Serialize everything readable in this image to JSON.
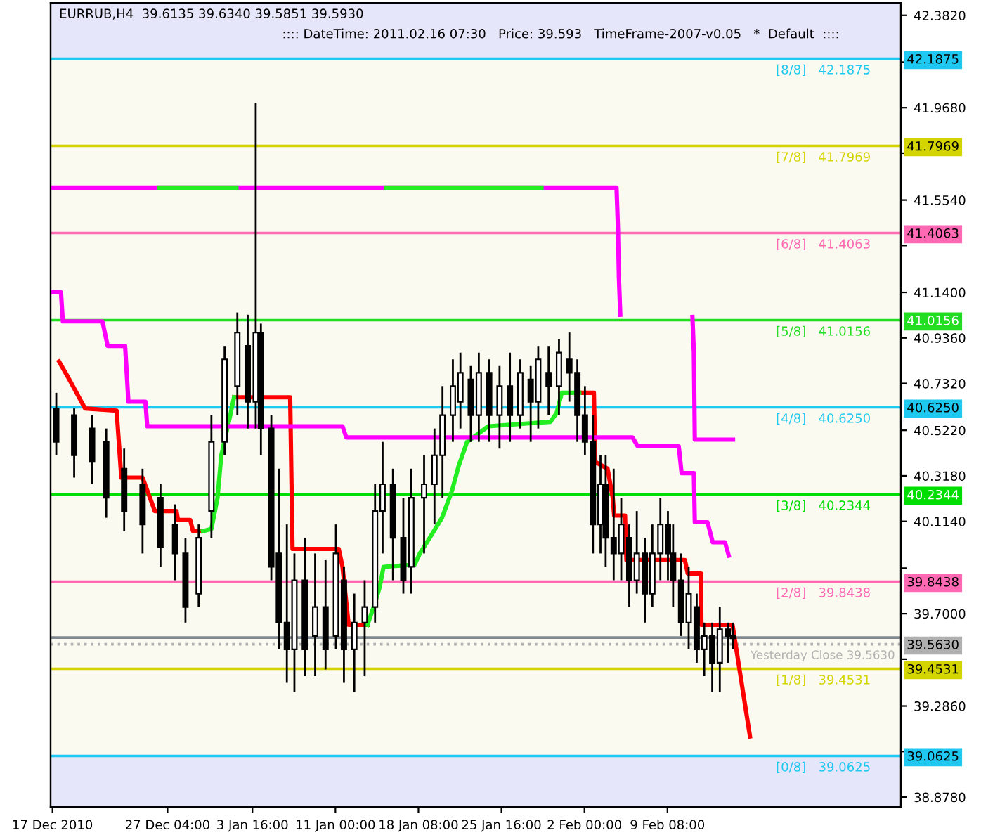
{
  "chart_data": {
    "type": "candlestick",
    "title": "EURRUB,H4  39.6135 39.6340 39.5851 39.5930",
    "subtitle": ":::: DateTime: 2011.02.16 07:30   Price: 39.593   TimeFrame-2007-v0.05   *  Default  ::::",
    "color": "#000000",
    "x": [
      "2010-12-17T08:00",
      "2010-12-18T22:00",
      "2010-12-20T12:00",
      "2010-12-21T18:00",
      "2010-12-23T08:00",
      "2010-12-24T23:00",
      "2010-12-26T13:00",
      "2010-12-27T20:00",
      "2010-12-28T18:00",
      "2010-12-29T22:00",
      "2010-12-31T01:00",
      "2011-01-01T05:00",
      "2011-01-02T08:00",
      "2011-01-03T06:00",
      "2011-01-03T23:00",
      "2011-01-04T10:00",
      "2011-01-05T08:00",
      "2011-01-06T00:00",
      "2011-01-06T17:00",
      "2011-01-07T09:00",
      "2011-01-08T07:00",
      "2011-01-09T05:00",
      "2011-01-10T03:00",
      "2011-01-11T01:00",
      "2011-01-11T18:00",
      "2011-01-12T16:00",
      "2011-01-13T14:00",
      "2011-01-14T12:00",
      "2011-01-15T04:00",
      "2011-01-16T02:00",
      "2011-01-17T00:00",
      "2011-01-17T17:00",
      "2011-01-18T20:00",
      "2011-01-19T18:00",
      "2011-01-20T11:00",
      "2011-01-21T09:00",
      "2011-01-22T01:00",
      "2011-01-22T23:00",
      "2011-01-23T16:00",
      "2011-01-24T14:00",
      "2011-01-25T12:00",
      "2011-01-26T10:00",
      "2011-01-27T08:00",
      "2011-01-28T06:00",
      "2011-01-28T22:00",
      "2011-01-29T20:00",
      "2011-01-30T18:00",
      "2011-01-31T16:00",
      "2011-02-01T09:00",
      "2011-02-02T01:00",
      "2011-02-02T18:00",
      "2011-02-03T10:00",
      "2011-02-03T21:00",
      "2011-02-04T14:00",
      "2011-02-05T06:00",
      "2011-02-05T23:00",
      "2011-02-06T15:00",
      "2011-02-07T08:00",
      "2011-02-08T00:00",
      "2011-02-08T17:00",
      "2011-02-09T09:00",
      "2011-02-09T20:00",
      "2011-02-10T13:00",
      "2011-02-11T05:00",
      "2011-02-11T22:00",
      "2011-02-12T14:00",
      "2011-02-13T07:00",
      "2011-02-13T23:00",
      "2011-02-14T16:00",
      "2011-02-15T03:00"
    ],
    "ohlc": [
      [
        40.62,
        40.69,
        40.41,
        40.47
      ],
      [
        40.59,
        40.62,
        40.31,
        40.41
      ],
      [
        40.53,
        40.59,
        40.28,
        40.38
      ],
      [
        40.47,
        40.53,
        40.13,
        40.22
      ],
      [
        40.35,
        40.44,
        40.07,
        40.16
      ],
      [
        40.28,
        40.35,
        39.97,
        40.1
      ],
      [
        40.22,
        40.28,
        39.91,
        40.0
      ],
      [
        40.1,
        40.19,
        39.85,
        39.97
      ],
      [
        39.97,
        40.04,
        39.66,
        39.73
      ],
      [
        39.79,
        40.1,
        39.73,
        40.04
      ],
      [
        40.16,
        40.59,
        40.04,
        40.47
      ],
      [
        40.47,
        40.9,
        40.41,
        40.84
      ],
      [
        40.72,
        41.05,
        40.59,
        40.96
      ],
      [
        40.9,
        41.04,
        40.53,
        40.65
      ],
      [
        40.65,
        41.99,
        40.53,
        40.96
      ],
      [
        40.96,
        41.0,
        40.41,
        40.53
      ],
      [
        40.53,
        40.59,
        39.85,
        39.91
      ],
      [
        39.97,
        40.35,
        39.54,
        39.66
      ],
      [
        39.66,
        40.1,
        39.39,
        39.54
      ],
      [
        39.54,
        39.97,
        39.35,
        39.85
      ],
      [
        39.85,
        40.04,
        39.42,
        39.54
      ],
      [
        39.6,
        39.97,
        39.42,
        39.73
      ],
      [
        39.73,
        39.94,
        39.45,
        39.54
      ],
      [
        39.6,
        40.1,
        39.54,
        39.97
      ],
      [
        39.85,
        39.91,
        39.39,
        39.54
      ],
      [
        39.54,
        39.79,
        39.35,
        39.66
      ],
      [
        39.66,
        39.85,
        39.42,
        39.73
      ],
      [
        39.73,
        40.28,
        39.66,
        40.16
      ],
      [
        40.16,
        40.47,
        39.97,
        40.28
      ],
      [
        40.28,
        40.35,
        39.85,
        40.04
      ],
      [
        40.04,
        40.22,
        39.79,
        39.85
      ],
      [
        39.91,
        40.35,
        39.79,
        40.22
      ],
      [
        40.22,
        40.41,
        39.97,
        40.28
      ],
      [
        40.28,
        40.53,
        40.1,
        40.41
      ],
      [
        40.41,
        40.72,
        40.22,
        40.59
      ],
      [
        40.59,
        40.84,
        40.47,
        40.72
      ],
      [
        40.65,
        40.87,
        40.53,
        40.78
      ],
      [
        40.75,
        40.81,
        40.47,
        40.59
      ],
      [
        40.59,
        40.87,
        40.47,
        40.78
      ],
      [
        40.78,
        40.84,
        40.47,
        40.59
      ],
      [
        40.59,
        40.81,
        40.44,
        40.72
      ],
      [
        40.72,
        40.87,
        40.47,
        40.59
      ],
      [
        40.59,
        40.84,
        40.53,
        40.78
      ],
      [
        40.75,
        40.81,
        40.47,
        40.65
      ],
      [
        40.65,
        40.9,
        40.53,
        40.84
      ],
      [
        40.78,
        40.9,
        40.59,
        40.72
      ],
      [
        40.72,
        40.93,
        40.59,
        40.87
      ],
      [
        40.84,
        40.96,
        40.65,
        40.78
      ],
      [
        40.78,
        40.84,
        40.47,
        40.59
      ],
      [
        40.59,
        40.72,
        40.41,
        40.47
      ],
      [
        40.47,
        40.59,
        39.97,
        40.1
      ],
      [
        40.1,
        40.41,
        39.97,
        40.28
      ],
      [
        40.28,
        40.41,
        39.91,
        40.04
      ],
      [
        40.04,
        40.35,
        39.85,
        39.97
      ],
      [
        39.97,
        40.22,
        39.85,
        40.1
      ],
      [
        40.04,
        40.1,
        39.73,
        39.85
      ],
      [
        39.85,
        40.16,
        39.79,
        39.97
      ],
      [
        39.97,
        40.04,
        39.66,
        39.79
      ],
      [
        39.79,
        40.1,
        39.73,
        39.97
      ],
      [
        39.97,
        40.22,
        39.85,
        40.1
      ],
      [
        40.1,
        40.16,
        39.85,
        39.97
      ],
      [
        39.97,
        40.1,
        39.73,
        39.85
      ],
      [
        39.85,
        39.97,
        39.6,
        39.66
      ],
      [
        39.66,
        39.91,
        39.54,
        39.79
      ],
      [
        39.73,
        39.79,
        39.48,
        39.54
      ],
      [
        39.54,
        39.66,
        39.42,
        39.6
      ],
      [
        39.6,
        39.66,
        39.35,
        39.48
      ],
      [
        39.48,
        39.73,
        39.35,
        39.63
      ],
      [
        39.63,
        39.66,
        39.48,
        39.6
      ],
      [
        39.6,
        39.66,
        39.54,
        39.59
      ]
    ],
    "series": [
      {
        "type": "line",
        "color": "#ff0000",
        "x": [
          "2010-12-17T14:00",
          "2010-12-18T09:00",
          "2010-12-19T21:00",
          "2010-12-22T16:00",
          "2010-12-23T02:00",
          "2010-12-24T23:00",
          "2010-12-26T01:00",
          "2010-12-27T23:00",
          "2010-12-28T02:00",
          "2010-12-29T04:00",
          "2010-12-29T10:00",
          "2010-12-30T07:00",
          "2010-12-31T07:00",
          "2011-01-02T01:00",
          "2011-01-07T00:00",
          "2011-01-07T05:00",
          "2011-01-11T07:00",
          "2011-01-11T15:00",
          "2011-01-12T04:00",
          "2011-01-13T20:00",
          "2011-01-23T05:00",
          "2011-02-01T13:00",
          "2011-02-02T20:00",
          "2011-02-02T23:00",
          "2011-02-04T01:00",
          "2011-02-04T12:00",
          "2011-02-04T15:00",
          "2011-02-05T14:00",
          "2011-02-05T17:00",
          "2011-02-10T21:00",
          "2011-02-11T03:00",
          "2011-02-12T07:00",
          "2011-02-12T08:00",
          "2011-02-15T02:00",
          "2011-02-16T15:00"
        ],
        "values": [
          40.83,
          40.76,
          40.62,
          40.61,
          40.31,
          40.31,
          40.16,
          40.16,
          40.12,
          40.12,
          40.07,
          40.07,
          null,
          40.67,
          40.67,
          39.99,
          39.99,
          39.91,
          39.65,
          39.65,
          null,
          40.69,
          40.69,
          40.38,
          40.35,
          40.22,
          40.14,
          40.14,
          39.94,
          39.94,
          39.88,
          39.88,
          39.65,
          39.65,
          39.15
        ]
      },
      {
        "type": "line",
        "color": "#22ee22",
        "x": [
          "2010-12-30T07:00",
          "2010-12-31T01:00",
          "2010-12-31T14:00",
          "2010-12-31T22:00",
          "2011-01-01T17:00",
          "2011-01-02T01:00",
          "2011-01-07T04:00",
          "2011-01-13T20:00",
          "2011-01-14T09:00",
          "2011-01-14T22:00",
          "2011-01-15T06:00",
          "2011-01-18T00:00",
          "2011-01-18T11:00",
          "2011-01-19T08:00",
          "2011-01-20T10:00",
          "2011-01-21T07:00",
          "2011-01-21T21:00",
          "2011-01-22T15:00",
          "2011-01-23T17:00",
          "2011-01-24T12:00",
          "2011-01-30T00:00",
          "2011-01-30T13:00",
          "2011-01-31T00:00",
          "2011-02-01T13:00"
        ],
        "values": [
          40.07,
          40.08,
          40.22,
          40.41,
          40.59,
          40.67,
          null,
          39.65,
          39.73,
          39.82,
          39.91,
          39.92,
          39.97,
          40.04,
          40.13,
          40.25,
          40.36,
          40.47,
          40.51,
          40.54,
          40.56,
          40.6,
          40.69,
          40.69
        ]
      },
      {
        "type": "line",
        "color": "#ff00ff",
        "x": [
          "2010-12-17T00:00",
          "2010-12-17T18:00",
          "2010-12-17T22:00",
          "2010-12-21T10:00",
          "2010-12-21T21:00",
          "2010-12-23T10:00",
          "2010-12-23T17:00",
          "2010-12-25T05:00",
          "2010-12-25T09:00",
          "2011-01-11T15:00",
          "2011-01-11T23:00",
          "2011-02-06T06:00",
          "2011-02-06T17:00",
          "2011-02-10T08:00",
          "2011-02-10T14:00",
          "2011-02-11T16:00",
          "2011-02-11T18:00",
          "2011-02-12T21:00",
          "2011-02-13T08:00",
          "2011-02-14T10:00",
          "2011-02-14T18:00"
        ],
        "values": [
          41.14,
          41.14,
          41.01,
          41.01,
          40.9,
          40.9,
          40.65,
          40.65,
          40.54,
          40.54,
          40.49,
          40.49,
          40.45,
          40.45,
          40.33,
          40.33,
          40.11,
          40.11,
          40.02,
          40.02,
          39.96
        ]
      },
      {
        "type": "line",
        "color": "#ff00ff",
        "x": [
          "2010-12-17T00:00",
          "2011-02-04T20:00",
          "2011-02-04T23:00",
          "2011-02-05T01:00",
          "2011-02-05T04:00",
          "2011-02-08T06:00",
          "2011-02-11T13:00",
          "2011-02-11T16:00",
          "2011-02-11T18:00",
          "2011-02-15T03:00"
        ],
        "values": [
          41.61,
          41.61,
          41.43,
          41.21,
          41.04,
          null,
          41.03,
          40.87,
          40.48,
          40.48
        ]
      },
      {
        "type": "line",
        "color": "#22ee22",
        "x": [
          "2010-12-26T11:00",
          "2011-01-02T06:00",
          "2011-01-09T11:00",
          "2011-01-15T11:00",
          "2011-01-29T05:00"
        ],
        "values": [
          41.61,
          41.61,
          null,
          41.61,
          41.61
        ]
      }
    ],
    "xlim": [
      "2010-12-16T20:00",
      "2011-03-01T23:00"
    ],
    "ylim": [
      38.834,
      42.438
    ],
    "xticks": [
      {
        "value": "2010-12-17",
        "label": "17 Dec 2010"
      },
      {
        "value": "2010-12-27T04:00",
        "label": "27 Dec 04:00"
      },
      {
        "value": "2011-01-03T16:00",
        "label": "3 Jan 16:00"
      },
      {
        "value": "2011-01-11T00:00",
        "label": "11 Jan 00:00"
      },
      {
        "value": "2011-01-18T08:00",
        "label": "18 Jan 08:00"
      },
      {
        "value": "2011-01-25T16:00",
        "label": "25 Jan 16:00"
      },
      {
        "value": "2011-02-02T00:00",
        "label": "2 Feb 00:00"
      },
      {
        "value": "2011-02-09T08:00",
        "label": "9 Feb 08:00"
      }
    ],
    "yticks": [
      {
        "value": 42.382,
        "label": "42.3820"
      },
      {
        "value": 42.172,
        "label": null
      },
      {
        "value": 41.968,
        "label": "41.9680"
      },
      {
        "value": 41.764,
        "label": null
      },
      {
        "value": 41.554,
        "label": "41.5540"
      },
      {
        "value": 41.35,
        "label": null
      },
      {
        "value": 41.14,
        "label": "41.1400"
      },
      {
        "value": 40.936,
        "label": "40.9360"
      },
      {
        "value": 40.732,
        "label": "40.7320"
      },
      {
        "value": 40.522,
        "label": "40.5220"
      },
      {
        "value": 40.318,
        "label": "40.3180"
      },
      {
        "value": 40.114,
        "label": "40.1140"
      },
      {
        "value": 39.904,
        "label": null
      },
      {
        "value": 39.7,
        "label": "39.7000"
      },
      {
        "value": 39.496,
        "label": null
      },
      {
        "value": 39.286,
        "label": "39.2860"
      },
      {
        "value": 39.082,
        "label": null
      },
      {
        "value": 38.878,
        "label": "38.8780"
      }
    ],
    "y2lim": [
      38.834,
      42.438
    ],
    "y2ticks": [
      {
        "value": 42.1875,
        "label": "42.1875"
      },
      {
        "value": 41.7969,
        "label": "41.7969"
      },
      {
        "value": 41.4063,
        "label": "41.4063"
      },
      {
        "value": 41.0156,
        "label": "41.0156"
      },
      {
        "value": 40.625,
        "label": "40.6250"
      },
      {
        "value": 40.2344,
        "label": "40.2344"
      },
      {
        "value": 39.8438,
        "label": "39.8438"
      },
      {
        "value": 39.593,
        "label": null
      },
      {
        "value": 39.563,
        "label": "39.5630"
      },
      {
        "value": 39.4531,
        "label": "39.4531"
      },
      {
        "value": 39.0625,
        "label": "39.0625"
      }
    ],
    "ref_lines": [
      {
        "axis": "y",
        "value": 42.1875,
        "label": "[8/8]   42.1875",
        "color": "#1ec8f0"
      },
      {
        "axis": "y",
        "value": 41.7969,
        "label": "[7/8]   41.7969",
        "color": "#d4d400"
      },
      {
        "axis": "y",
        "value": 41.4063,
        "label": "[6/8]   41.4063",
        "color": "#ff69b4"
      },
      {
        "axis": "y",
        "value": 41.0156,
        "label": "[5/8]   41.0156",
        "color": "#22dd22"
      },
      {
        "axis": "y",
        "value": 40.625,
        "label": "[4/8]   40.6250",
        "color": "#1ec8f0"
      },
      {
        "axis": "y",
        "value": 40.2344,
        "label": "[3/8]   40.2344",
        "color": "#00dd00"
      },
      {
        "axis": "y",
        "value": 39.8438,
        "label": "[2/8]   39.8438",
        "color": "#ff69b4"
      },
      {
        "axis": "y",
        "value": 39.593,
        "label": null,
        "color": "#808890"
      },
      {
        "axis": "y",
        "value": 39.563,
        "label": "Yesterday Close 39.5630",
        "color": "#b0b0b0",
        "line_style": "dotted"
      },
      {
        "axis": "y",
        "value": 39.4531,
        "label": "[1/8]   39.4531",
        "color": "#d4d400"
      },
      {
        "axis": "y",
        "value": 39.0625,
        "label": "[0/8]   39.0625",
        "color": "#1ec8f0"
      }
    ],
    "bands": [
      {
        "axis": "y",
        "from": 42.1875,
        "to": 42.438,
        "color": "#e6e6fa"
      },
      {
        "axis": "y",
        "from": 38.834,
        "to": 39.0625,
        "color": "#e6e6fa"
      }
    ]
  }
}
